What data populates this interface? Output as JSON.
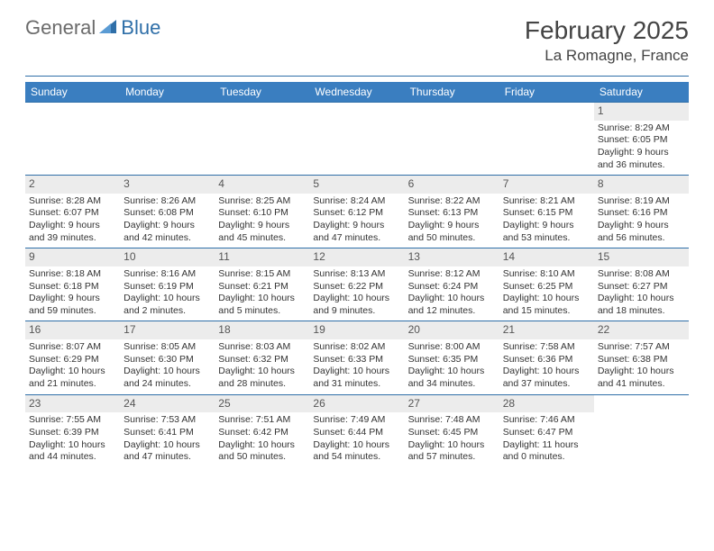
{
  "logo": {
    "text_general": "General",
    "text_blue": "Blue"
  },
  "title": {
    "month": "February 2025",
    "location": "La Romagne, France"
  },
  "colors": {
    "header_bg": "#3a7ec0",
    "divider": "#2f6fa8",
    "daynum_bg": "#ececec",
    "text": "#333333",
    "logo_gray": "#6b6b6b",
    "logo_blue": "#2f6fa8"
  },
  "day_headers": [
    "Sunday",
    "Monday",
    "Tuesday",
    "Wednesday",
    "Thursday",
    "Friday",
    "Saturday"
  ],
  "weeks": [
    [
      null,
      null,
      null,
      null,
      null,
      null,
      {
        "n": "1",
        "sunrise": "8:29 AM",
        "sunset": "6:05 PM",
        "daylight": "9 hours and 36 minutes."
      }
    ],
    [
      {
        "n": "2",
        "sunrise": "8:28 AM",
        "sunset": "6:07 PM",
        "daylight": "9 hours and 39 minutes."
      },
      {
        "n": "3",
        "sunrise": "8:26 AM",
        "sunset": "6:08 PM",
        "daylight": "9 hours and 42 minutes."
      },
      {
        "n": "4",
        "sunrise": "8:25 AM",
        "sunset": "6:10 PM",
        "daylight": "9 hours and 45 minutes."
      },
      {
        "n": "5",
        "sunrise": "8:24 AM",
        "sunset": "6:12 PM",
        "daylight": "9 hours and 47 minutes."
      },
      {
        "n": "6",
        "sunrise": "8:22 AM",
        "sunset": "6:13 PM",
        "daylight": "9 hours and 50 minutes."
      },
      {
        "n": "7",
        "sunrise": "8:21 AM",
        "sunset": "6:15 PM",
        "daylight": "9 hours and 53 minutes."
      },
      {
        "n": "8",
        "sunrise": "8:19 AM",
        "sunset": "6:16 PM",
        "daylight": "9 hours and 56 minutes."
      }
    ],
    [
      {
        "n": "9",
        "sunrise": "8:18 AM",
        "sunset": "6:18 PM",
        "daylight": "9 hours and 59 minutes."
      },
      {
        "n": "10",
        "sunrise": "8:16 AM",
        "sunset": "6:19 PM",
        "daylight": "10 hours and 2 minutes."
      },
      {
        "n": "11",
        "sunrise": "8:15 AM",
        "sunset": "6:21 PM",
        "daylight": "10 hours and 5 minutes."
      },
      {
        "n": "12",
        "sunrise": "8:13 AM",
        "sunset": "6:22 PM",
        "daylight": "10 hours and 9 minutes."
      },
      {
        "n": "13",
        "sunrise": "8:12 AM",
        "sunset": "6:24 PM",
        "daylight": "10 hours and 12 minutes."
      },
      {
        "n": "14",
        "sunrise": "8:10 AM",
        "sunset": "6:25 PM",
        "daylight": "10 hours and 15 minutes."
      },
      {
        "n": "15",
        "sunrise": "8:08 AM",
        "sunset": "6:27 PM",
        "daylight": "10 hours and 18 minutes."
      }
    ],
    [
      {
        "n": "16",
        "sunrise": "8:07 AM",
        "sunset": "6:29 PM",
        "daylight": "10 hours and 21 minutes."
      },
      {
        "n": "17",
        "sunrise": "8:05 AM",
        "sunset": "6:30 PM",
        "daylight": "10 hours and 24 minutes."
      },
      {
        "n": "18",
        "sunrise": "8:03 AM",
        "sunset": "6:32 PM",
        "daylight": "10 hours and 28 minutes."
      },
      {
        "n": "19",
        "sunrise": "8:02 AM",
        "sunset": "6:33 PM",
        "daylight": "10 hours and 31 minutes."
      },
      {
        "n": "20",
        "sunrise": "8:00 AM",
        "sunset": "6:35 PM",
        "daylight": "10 hours and 34 minutes."
      },
      {
        "n": "21",
        "sunrise": "7:58 AM",
        "sunset": "6:36 PM",
        "daylight": "10 hours and 37 minutes."
      },
      {
        "n": "22",
        "sunrise": "7:57 AM",
        "sunset": "6:38 PM",
        "daylight": "10 hours and 41 minutes."
      }
    ],
    [
      {
        "n": "23",
        "sunrise": "7:55 AM",
        "sunset": "6:39 PM",
        "daylight": "10 hours and 44 minutes."
      },
      {
        "n": "24",
        "sunrise": "7:53 AM",
        "sunset": "6:41 PM",
        "daylight": "10 hours and 47 minutes."
      },
      {
        "n": "25",
        "sunrise": "7:51 AM",
        "sunset": "6:42 PM",
        "daylight": "10 hours and 50 minutes."
      },
      {
        "n": "26",
        "sunrise": "7:49 AM",
        "sunset": "6:44 PM",
        "daylight": "10 hours and 54 minutes."
      },
      {
        "n": "27",
        "sunrise": "7:48 AM",
        "sunset": "6:45 PM",
        "daylight": "10 hours and 57 minutes."
      },
      {
        "n": "28",
        "sunrise": "7:46 AM",
        "sunset": "6:47 PM",
        "daylight": "11 hours and 0 minutes."
      },
      null
    ]
  ],
  "labels": {
    "sunrise": "Sunrise:",
    "sunset": "Sunset:",
    "daylight": "Daylight:"
  }
}
